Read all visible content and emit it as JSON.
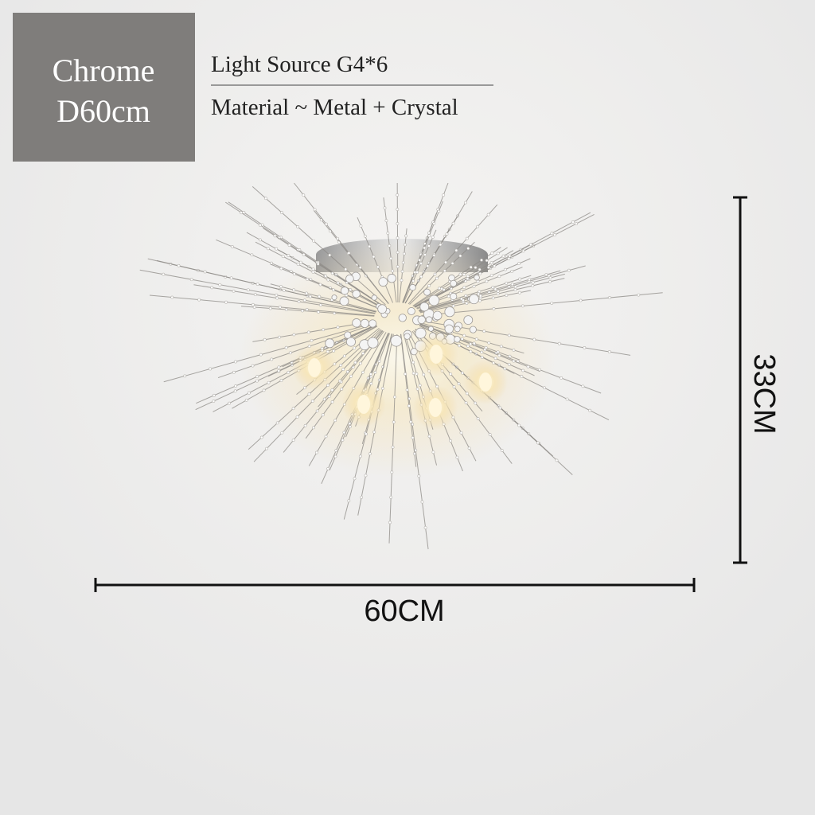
{
  "badge": {
    "finish": "Chrome",
    "diameter": "D60cm"
  },
  "specs": {
    "light_source": "Light Source G4*6",
    "material": "Material ~ Metal + Crystal"
  },
  "dimensions": {
    "width": "60CM",
    "height": "33CM"
  }
}
